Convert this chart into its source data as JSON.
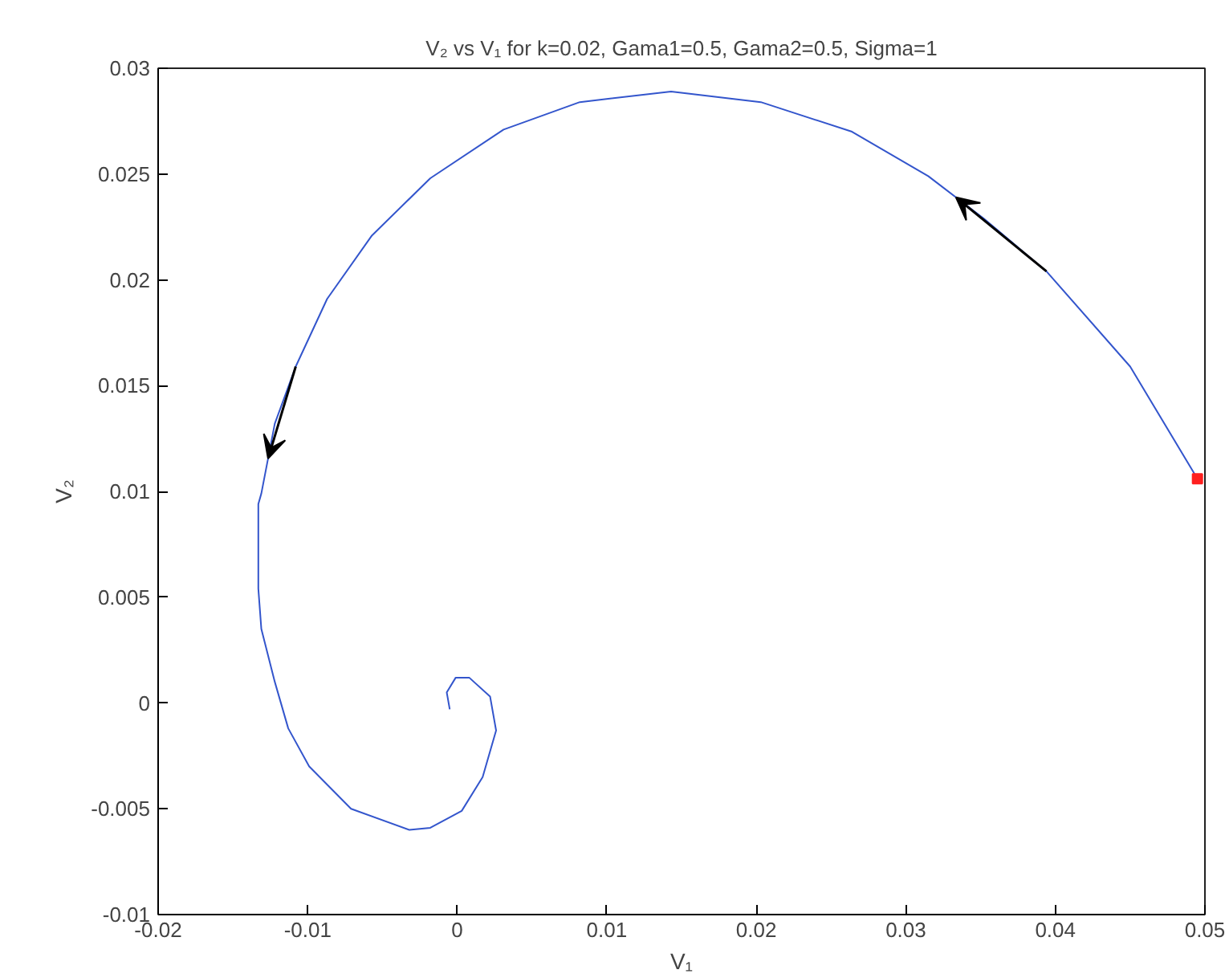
{
  "chart_data": {
    "type": "line",
    "title": "V₂ vs V₁ for k=0.02, Gama1=0.5, Gama2=0.5, Sigma=1",
    "xlabel": "V₁",
    "ylabel": "V₂",
    "xlim": [
      -0.02,
      0.05
    ],
    "xticks": [
      -0.02,
      -0.01,
      0,
      0.01,
      0.02,
      0.03,
      0.04,
      0.05
    ],
    "ylim": [
      -0.01,
      0.03
    ],
    "yticks": [
      -0.01,
      -0.005,
      0,
      0.005,
      0.01,
      0.015,
      0.02,
      0.025,
      0.03
    ],
    "grid": false,
    "marker": "none",
    "line_style": "solid",
    "series": [
      {
        "color": "#3355cc",
        "x": [
          0.0495,
          0.045,
          0.0394,
          0.0352,
          0.0315,
          0.0264,
          0.0203,
          0.0143,
          0.0082,
          0.0031,
          -0.0018,
          -0.0057,
          -0.0087,
          -0.0108,
          -0.0122,
          -0.0131,
          -0.0133,
          -0.0133,
          -0.0131,
          -0.0122,
          -0.0113,
          -0.0099,
          -0.0071,
          -0.0032,
          -0.0018,
          0.0003,
          0.0017,
          0.0026,
          0.0022,
          0.0008,
          -0.0001,
          -0.0007,
          -0.0005
        ],
        "values": [
          0.0106,
          0.0159,
          0.0204,
          0.0229,
          0.0249,
          0.027,
          0.0284,
          0.0289,
          0.0284,
          0.0271,
          0.0248,
          0.0221,
          0.0191,
          0.0159,
          0.0132,
          0.0099,
          0.0094,
          0.0054,
          0.0035,
          0.001,
          -0.0012,
          -0.003,
          -0.005,
          -0.006,
          -0.0059,
          -0.0051,
          -0.0035,
          -0.0013,
          0.0003,
          0.0012,
          0.0012,
          0.0005,
          -0.0003
        ]
      },
      {
        "type": "scatter",
        "marker": "square",
        "color": "#ff2020",
        "x": [
          0.0495
        ],
        "values": [
          0.0106
        ]
      }
    ]
  }
}
